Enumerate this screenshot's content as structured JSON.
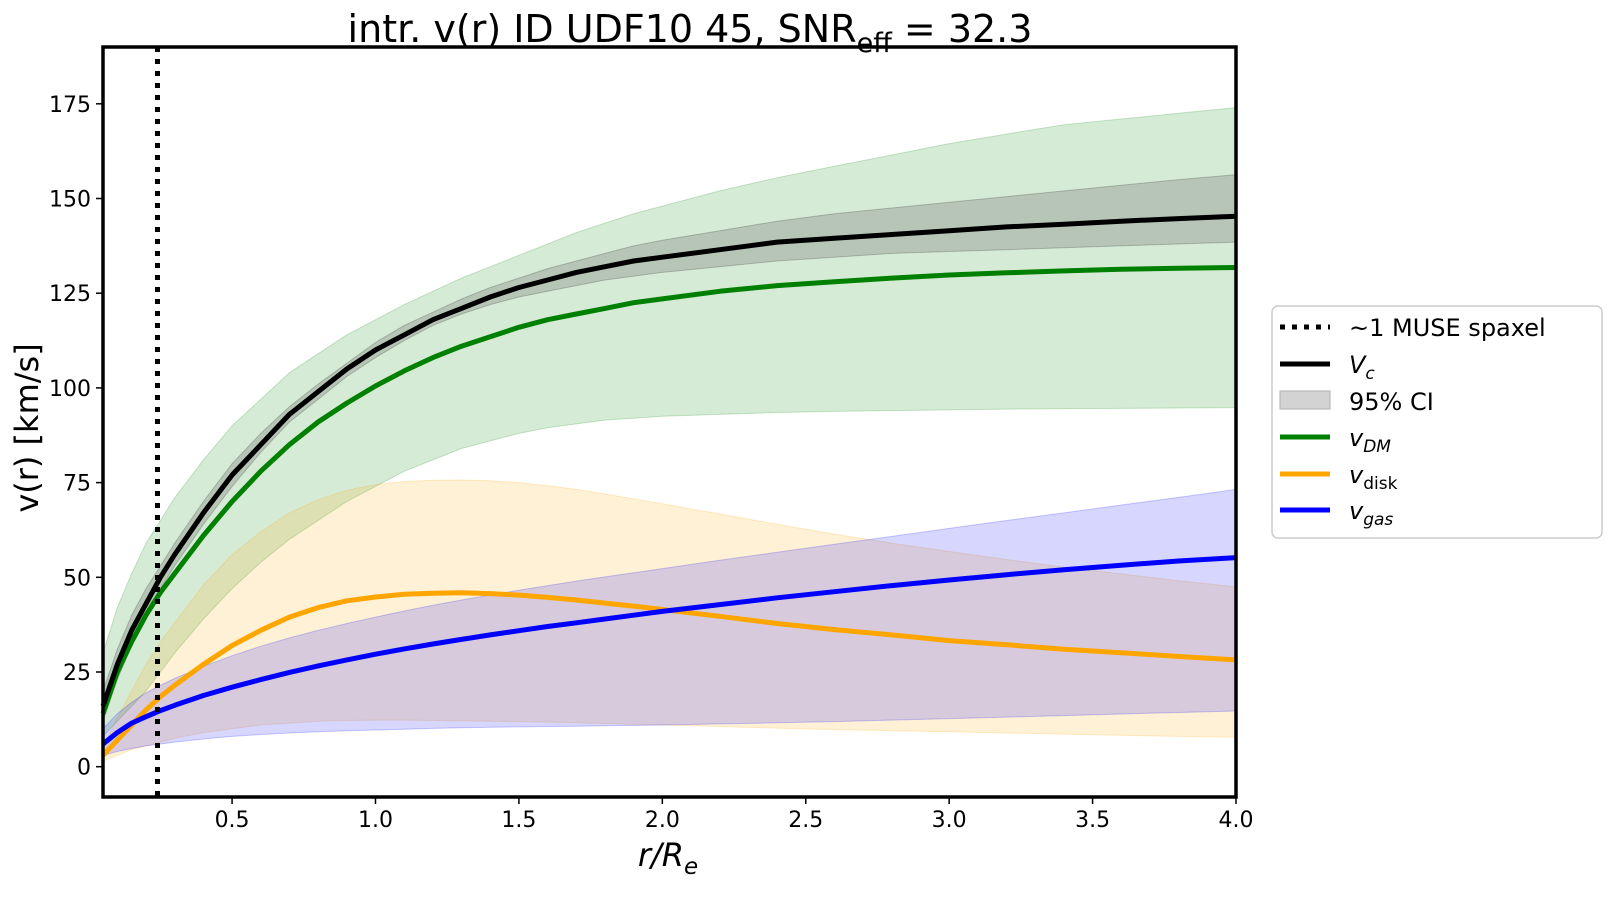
{
  "chart_data": {
    "type": "line",
    "title": {
      "main": "intr. v(r) ID UDF10 45, SNR",
      "sub": "eff",
      "tail": " = 32.3"
    },
    "xlabel": {
      "main": "r/R",
      "sub": "e"
    },
    "ylabel": "v(r) [km/s]",
    "xlim": [
      0.05,
      4.0
    ],
    "ylim": [
      -8,
      190
    ],
    "xticks": [
      0.5,
      1.0,
      1.5,
      2.0,
      2.5,
      3.0,
      3.5,
      4.0
    ],
    "xtick_labels": [
      "0.5",
      "1.0",
      "1.5",
      "2.0",
      "2.5",
      "3.0",
      "3.5",
      "4.0"
    ],
    "yticks": [
      0,
      25,
      50,
      75,
      100,
      125,
      150,
      175
    ],
    "ytick_labels": [
      "0",
      "25",
      "50",
      "75",
      "100",
      "125",
      "150",
      "175"
    ],
    "grid": false,
    "legend_placement": "outside-right",
    "x": [
      0.05,
      0.1,
      0.15,
      0.2,
      0.25,
      0.3,
      0.4,
      0.5,
      0.6,
      0.7,
      0.8,
      0.9,
      1.0,
      1.1,
      1.2,
      1.3,
      1.4,
      1.5,
      1.6,
      1.7,
      1.8,
      1.9,
      2.0,
      2.2,
      2.4,
      2.6,
      2.8,
      3.0,
      3.2,
      3.4,
      3.6,
      3.8,
      4.0
    ],
    "vline": {
      "x": 0.24,
      "label": "~1 MUSE spaxel",
      "color": "#000000"
    },
    "ci_label": "95% CI",
    "ci_color": "#d3d3d3",
    "series": [
      {
        "name": "V",
        "name_sub": "c",
        "italic": true,
        "color": "#000000",
        "values": [
          16,
          27,
          36,
          43,
          50,
          56,
          67,
          77,
          85,
          93,
          99,
          105,
          110,
          114,
          118,
          121,
          124,
          126.5,
          128.5,
          130.5,
          132,
          133.5,
          134.5,
          136.5,
          138.5,
          139.5,
          140.5,
          141.5,
          142.5,
          143.2,
          144,
          144.7,
          145.3
        ],
        "ci_low": [
          12,
          23,
          32,
          40,
          47,
          53,
          64,
          74,
          83,
          91,
          97,
          103,
          108,
          112.5,
          116.5,
          119.5,
          122,
          124,
          125.5,
          127,
          128.5,
          129.5,
          130.5,
          132,
          133.5,
          134.5,
          135.5,
          136,
          136.5,
          137,
          137.5,
          138,
          138.5
        ],
        "ci_high": [
          20,
          31,
          40,
          47,
          53,
          59,
          70,
          80,
          88,
          95,
          101,
          106.5,
          112,
          116.5,
          120,
          123.5,
          126.5,
          129,
          131.5,
          133.5,
          135.5,
          137.5,
          139,
          141.5,
          144,
          146,
          147.5,
          149,
          150.5,
          152,
          153.5,
          155,
          156.3
        ],
        "fill_color": "#7f7f7f",
        "fill_opacity": 0.35
      },
      {
        "name": "v",
        "name_sub": "DM",
        "italic": true,
        "color": "#008000",
        "values": [
          14,
          25,
          33,
          40,
          46,
          51,
          61,
          70,
          78,
          85,
          91,
          96,
          100.5,
          104.5,
          108,
          111,
          113.5,
          116,
          118,
          119.5,
          121,
          122.5,
          123.5,
          125.5,
          127,
          128,
          129,
          129.8,
          130.4,
          130.9,
          131.3,
          131.6,
          131.8
        ],
        "ci_low": [
          8,
          12,
          16,
          20,
          25,
          30,
          39,
          47,
          54,
          60,
          65,
          70,
          74,
          78,
          81,
          84,
          86,
          88,
          89.5,
          90.5,
          91.5,
          92,
          92.5,
          93,
          93.5,
          93.8,
          94,
          94.2,
          94.4,
          94.5,
          94.6,
          94.7,
          94.8
        ],
        "ci_high": [
          30,
          42,
          51,
          59,
          65,
          71,
          81,
          90,
          97,
          104,
          109,
          114,
          118,
          122,
          125.5,
          129,
          132,
          135,
          138,
          141,
          143.5,
          146,
          148,
          152,
          155.5,
          158.5,
          161.5,
          164.5,
          167,
          169.5,
          171,
          172.5,
          174
        ]
      },
      {
        "name": "v",
        "name_sub": "disk",
        "italic": true,
        "sub_italic": false,
        "color": "#ffa500",
        "values": [
          3,
          7,
          11,
          15,
          18.5,
          21.5,
          27,
          32,
          36,
          39.5,
          42,
          43.8,
          44.8,
          45.5,
          45.8,
          45.9,
          45.7,
          45.3,
          44.7,
          44,
          43.2,
          42.4,
          41.5,
          39.7,
          37.8,
          36.2,
          34.8,
          33.3,
          32.2,
          31,
          30.1,
          29.1,
          28.2
        ],
        "ci_low": [
          1.5,
          3,
          4.5,
          5.5,
          6.5,
          7.5,
          9,
          10,
          11,
          11.5,
          12,
          12.2,
          12.3,
          12.3,
          12.2,
          12.1,
          12,
          11.9,
          11.8,
          11.6,
          11.4,
          11.2,
          11,
          10.6,
          10.2,
          9.8,
          9.5,
          9.2,
          8.9,
          8.6,
          8.3,
          8,
          7.8
        ],
        "ci_high": [
          5,
          13,
          20,
          27,
          33,
          38,
          48,
          56,
          62,
          67,
          70.5,
          73,
          74.5,
          75.3,
          75.6,
          75.7,
          75.5,
          75,
          74.2,
          73.2,
          72,
          70.7,
          69.4,
          66.7,
          64,
          61.4,
          59,
          56.8,
          54.7,
          52.7,
          50.9,
          49.1,
          47.5
        ]
      },
      {
        "name": "v",
        "name_sub": "gas",
        "italic": true,
        "color": "#0000ff",
        "values": [
          6,
          9,
          11.5,
          13.2,
          14.8,
          16.2,
          18.8,
          21,
          23,
          24.9,
          26.6,
          28.2,
          29.7,
          31.1,
          32.4,
          33.6,
          34.8,
          35.9,
          37,
          38,
          39,
          40,
          41,
          42.8,
          44.6,
          46.2,
          47.8,
          49.3,
          50.7,
          52,
          53.2,
          54.3,
          55.2
        ],
        "ci_low": [
          3,
          4,
          4.8,
          5.5,
          6,
          6.5,
          7.3,
          8,
          8.5,
          8.9,
          9.2,
          9.5,
          9.7,
          9.9,
          10.1,
          10.3,
          10.4,
          10.5,
          10.6,
          10.7,
          10.8,
          10.9,
          11,
          11.3,
          11.6,
          11.9,
          12.3,
          12.7,
          13.1,
          13.5,
          13.9,
          14.3,
          14.7
        ],
        "ci_high": [
          10,
          14,
          17,
          19.5,
          21.5,
          23.3,
          26.5,
          29.3,
          31.8,
          34,
          36,
          37.8,
          39.5,
          41.1,
          42.6,
          44,
          45.3,
          46.6,
          47.8,
          49,
          50.1,
          51.2,
          52.3,
          54.5,
          56.6,
          58.7,
          60.8,
          62.9,
          65,
          67,
          69.1,
          71.1,
          73.2
        ]
      }
    ]
  }
}
